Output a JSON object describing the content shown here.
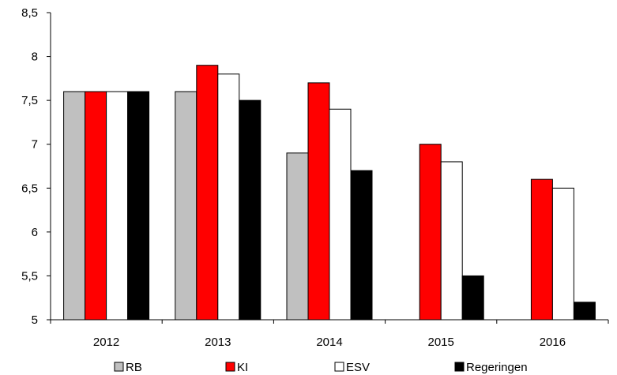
{
  "chart_data": {
    "type": "bar",
    "categories": [
      "2012",
      "2013",
      "2014",
      "2015",
      "2016"
    ],
    "series": [
      {
        "name": "RB",
        "color": "#c0c0c0",
        "values": [
          7.6,
          7.6,
          6.9,
          null,
          null
        ]
      },
      {
        "name": "KI",
        "color": "#ff0000",
        "values": [
          7.6,
          7.9,
          7.7,
          7.0,
          6.6
        ]
      },
      {
        "name": "ESV",
        "color": "#ffffff",
        "values": [
          7.6,
          7.8,
          7.4,
          6.8,
          6.5
        ]
      },
      {
        "name": "Regeringen",
        "color": "#000000",
        "values": [
          7.6,
          7.5,
          6.7,
          5.5,
          5.2
        ]
      }
    ],
    "y_ticks": [
      "5",
      "5,5",
      "6",
      "6,5",
      "7",
      "7,5",
      "8",
      "8,5"
    ],
    "ylim": [
      5,
      8.5
    ],
    "grid": false,
    "legend_position": "bottom"
  }
}
